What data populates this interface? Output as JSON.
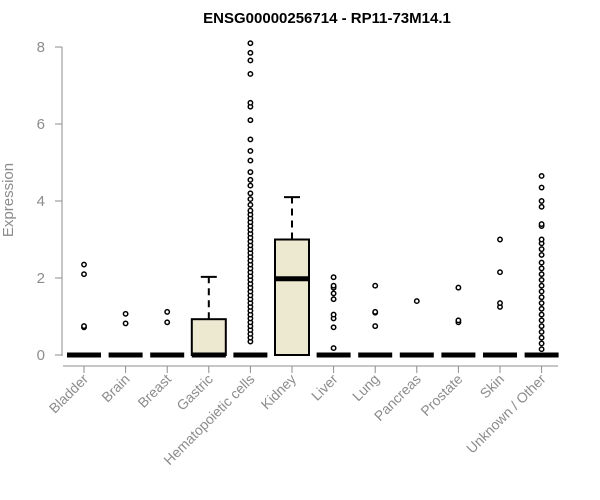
{
  "chart_data": {
    "type": "box",
    "title": "ENSG00000256714 - RP11-73M14.1",
    "xlabel": "",
    "ylabel": "Expression",
    "ylim": [
      0,
      8
    ],
    "yticks": [
      0,
      2,
      4,
      6,
      8
    ],
    "box_fill": "#ede8d0",
    "grid": false,
    "categories": [
      "Bladder",
      "Brain",
      "Breast",
      "Gastric",
      "Hematopoietic cells",
      "Kidney",
      "Liver",
      "Lung",
      "Pancreas",
      "Prostate",
      "Skin",
      "Unknown / Other"
    ],
    "boxes": [
      {
        "q1": 0,
        "median": 0,
        "q3": 0,
        "whisker_low": 0,
        "whisker_high": 0,
        "outliers": [
          0.72,
          0.75,
          2.1,
          2.35
        ]
      },
      {
        "q1": 0,
        "median": 0,
        "q3": 0,
        "whisker_low": 0,
        "whisker_high": 0,
        "outliers": [
          0.82,
          1.07
        ]
      },
      {
        "q1": 0,
        "median": 0,
        "q3": 0,
        "whisker_low": 0,
        "whisker_high": 0,
        "outliers": [
          0.85,
          1.12
        ]
      },
      {
        "q1": 0,
        "median": 0,
        "q3": 0.93,
        "whisker_low": 0,
        "whisker_high": 2.03,
        "outliers": []
      },
      {
        "q1": 0,
        "median": 0,
        "q3": 0,
        "whisker_low": 0,
        "whisker_high": 0,
        "outliers": [
          0.35,
          0.45,
          0.55,
          0.65,
          0.75,
          0.85,
          0.95,
          1.05,
          1.15,
          1.25,
          1.35,
          1.45,
          1.55,
          1.65,
          1.75,
          1.85,
          1.95,
          2.05,
          2.15,
          2.25,
          2.35,
          2.45,
          2.55,
          2.65,
          2.75,
          2.85,
          2.95,
          3.05,
          3.15,
          3.25,
          3.35,
          3.45,
          3.55,
          3.65,
          3.75,
          3.9,
          4.05,
          4.2,
          4.4,
          4.55,
          4.75,
          5.05,
          5.3,
          5.6,
          6.1,
          6.45,
          6.55,
          7.3,
          7.65,
          7.85,
          8.1
        ]
      },
      {
        "q1": 0,
        "median": 1.98,
        "q3": 3.0,
        "whisker_low": 0,
        "whisker_high": 4.1,
        "outliers": []
      },
      {
        "q1": 0,
        "median": 0,
        "q3": 0,
        "whisker_low": 0,
        "whisker_high": 0,
        "outliers": [
          0.18,
          0.72,
          0.95,
          1.05,
          1.45,
          1.6,
          1.75,
          1.8,
          2.02
        ]
      },
      {
        "q1": 0,
        "median": 0,
        "q3": 0,
        "whisker_low": 0,
        "whisker_high": 0,
        "outliers": [
          0.75,
          1.1,
          1.12,
          1.8
        ]
      },
      {
        "q1": 0,
        "median": 0,
        "q3": 0,
        "whisker_low": 0,
        "whisker_high": 0,
        "outliers": [
          1.4
        ]
      },
      {
        "q1": 0,
        "median": 0,
        "q3": 0,
        "whisker_low": 0,
        "whisker_high": 0,
        "outliers": [
          0.85,
          0.9,
          1.75
        ]
      },
      {
        "q1": 0,
        "median": 0,
        "q3": 0,
        "whisker_low": 0,
        "whisker_high": 0,
        "outliers": [
          1.25,
          1.35,
          2.15,
          3.0
        ]
      },
      {
        "q1": 0,
        "median": 0,
        "q3": 0,
        "whisker_low": 0,
        "whisker_high": 0,
        "outliers": [
          0.15,
          0.3,
          0.45,
          0.6,
          0.75,
          0.9,
          1.05,
          1.2,
          1.35,
          1.5,
          1.65,
          1.8,
          1.95,
          2.1,
          2.25,
          2.4,
          2.6,
          2.75,
          2.9,
          3.0,
          3.35,
          3.4,
          3.85,
          4.0,
          4.35,
          4.65
        ]
      }
    ]
  }
}
